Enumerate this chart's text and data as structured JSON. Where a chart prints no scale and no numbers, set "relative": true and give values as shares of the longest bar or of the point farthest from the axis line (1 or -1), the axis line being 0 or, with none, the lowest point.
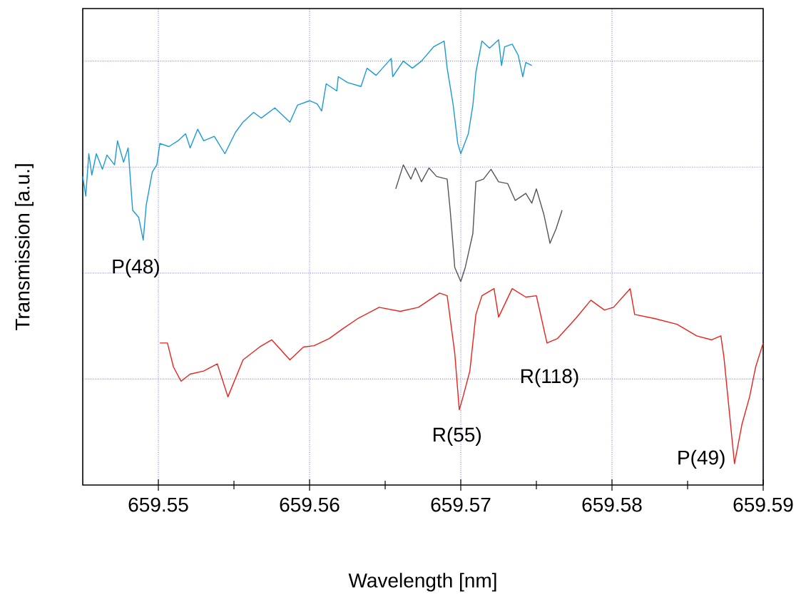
{
  "chart_data": {
    "type": "line",
    "relative": true,
    "xlabel": "Wavelength [nm]",
    "ylabel": "Transmission [a.u.]",
    "xlim": [
      659.545,
      659.59
    ],
    "xticks": [
      659.55,
      659.56,
      659.57,
      659.58,
      659.59
    ],
    "grid": true,
    "tick_labels": "x",
    "marker": "none",
    "series": [
      {
        "color": "#1a9ad6",
        "x": [
          659.545,
          659.5452,
          659.5454,
          659.5456,
          659.5459,
          659.5463,
          659.5466,
          659.5471,
          659.5473,
          659.5477,
          659.548,
          659.5483,
          659.5487,
          659.549,
          659.5492,
          659.5496,
          659.5499,
          659.5501,
          659.5507,
          659.5513,
          659.5518,
          659.5521,
          659.5526,
          659.553,
          659.5537,
          659.5544,
          659.5551,
          659.5556,
          659.5563,
          659.5568,
          659.5577,
          659.5582,
          659.5587,
          659.5592,
          659.56,
          659.5605,
          659.5608,
          659.5611,
          659.5618,
          659.5619,
          659.5625,
          659.5634,
          659.5638,
          659.5644,
          659.5654,
          659.5655,
          659.5662,
          659.5668,
          659.5674,
          659.5682,
          659.5689,
          659.5691,
          659.5695,
          659.5698,
          659.57,
          659.5705,
          659.5708,
          659.571,
          659.5714,
          659.5719,
          659.5725,
          659.5727,
          659.5729,
          659.5734,
          659.5738,
          659.5741,
          659.5743,
          659.5747
        ],
        "values": [
          0.693,
          0.649,
          0.744,
          0.696,
          0.744,
          0.709,
          0.741,
          0.719,
          0.773,
          0.725,
          0.757,
          0.617,
          0.601,
          0.55,
          0.629,
          0.703,
          0.719,
          0.767,
          0.76,
          0.773,
          0.789,
          0.757,
          0.799,
          0.773,
          0.783,
          0.744,
          0.792,
          0.815,
          0.837,
          0.824,
          0.847,
          0.831,
          0.815,
          0.853,
          0.863,
          0.856,
          0.84,
          0.901,
          0.885,
          0.917,
          0.904,
          0.895,
          0.936,
          0.92,
          0.958,
          0.917,
          0.952,
          0.936,
          0.952,
          0.984,
          0.997,
          0.936,
          0.853,
          0.767,
          0.744,
          0.789,
          0.853,
          0.927,
          0.997,
          0.981,
          1.0,
          0.942,
          0.984,
          0.99,
          0.965,
          0.917,
          0.949,
          0.942
        ]
      },
      {
        "color": "#555555",
        "x": [
          659.5657,
          659.5662,
          659.5667,
          659.567,
          659.5674,
          659.5679,
          659.5684,
          659.5691,
          659.5693,
          659.5695,
          659.5696,
          659.57,
          659.5703,
          659.5708,
          659.571,
          659.5715,
          659.572,
          659.5725,
          659.5731,
          659.5736,
          659.5743,
          659.5747,
          659.575,
          659.5755,
          659.5759,
          659.5763,
          659.5767
        ],
        "values": [
          0.665,
          0.719,
          0.687,
          0.712,
          0.681,
          0.712,
          0.693,
          0.687,
          0.617,
          0.534,
          0.489,
          0.457,
          0.489,
          0.565,
          0.681,
          0.687,
          0.709,
          0.681,
          0.677,
          0.639,
          0.655,
          0.633,
          0.665,
          0.607,
          0.543,
          0.575,
          0.617
        ]
      },
      {
        "color": "#e8231b",
        "x": [
          659.5501,
          659.5506,
          659.551,
          659.5515,
          659.5521,
          659.553,
          659.5539,
          659.5546,
          659.5556,
          659.5567,
          659.5575,
          659.5587,
          659.5596,
          659.5603,
          659.5613,
          659.5622,
          659.5632,
          659.5646,
          659.566,
          659.5672,
          659.5686,
          659.5691,
          659.5696,
          659.5699,
          659.5701,
          659.5706,
          659.571,
          659.5714,
          659.5722,
          659.5725,
          659.5734,
          659.5743,
          659.575,
          659.5757,
          659.5764,
          659.5776,
          659.5786,
          659.5795,
          659.5801,
          659.5812,
          659.5815,
          659.5828,
          659.5843,
          659.5856,
          659.5866,
          659.5872,
          659.5874,
          659.5881,
          659.5886,
          659.5891,
          659.5895,
          659.59
        ],
        "values": [
          0.319,
          0.319,
          0.265,
          0.233,
          0.249,
          0.256,
          0.272,
          0.198,
          0.281,
          0.31,
          0.326,
          0.281,
          0.31,
          0.313,
          0.329,
          0.351,
          0.374,
          0.399,
          0.39,
          0.399,
          0.431,
          0.425,
          0.297,
          0.169,
          0.192,
          0.256,
          0.383,
          0.425,
          0.441,
          0.377,
          0.441,
          0.422,
          0.425,
          0.319,
          0.329,
          0.374,
          0.415,
          0.393,
          0.399,
          0.441,
          0.383,
          0.374,
          0.361,
          0.335,
          0.326,
          0.335,
          0.288,
          0.048,
          0.137,
          0.198,
          0.265,
          0.319
        ]
      }
    ],
    "annotations": [
      "P(48)",
      "R(55)",
      "R(118)",
      "P(49)"
    ]
  }
}
